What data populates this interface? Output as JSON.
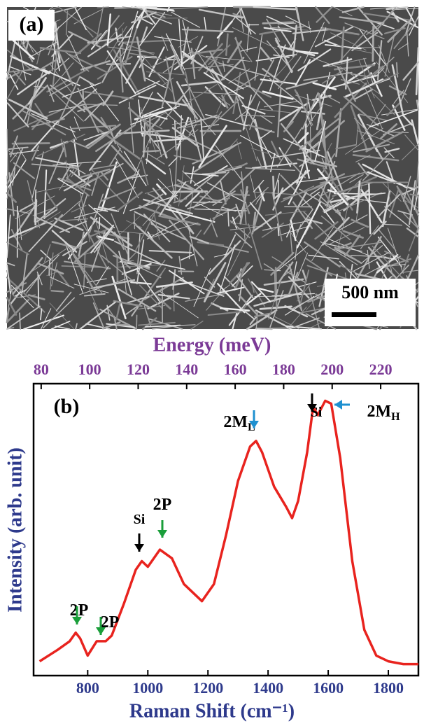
{
  "panel_a": {
    "label": "(a)",
    "scale_bar": "500 nm"
  },
  "chart_data": {
    "type": "line",
    "panel_label": "(b)",
    "xlabel": "Raman Shift (cm⁻¹)",
    "ylabel": "Intensity (arb. unit)",
    "x2label": "Energy (meV)",
    "x": [
      640,
      700,
      740,
      760,
      775,
      800,
      830,
      860,
      880,
      920,
      960,
      980,
      1000,
      1040,
      1080,
      1120,
      1180,
      1220,
      1260,
      1300,
      1340,
      1360,
      1380,
      1420,
      1460,
      1480,
      1500,
      1530,
      1550,
      1565,
      1590,
      1610,
      1640,
      1680,
      1720,
      1760,
      1800,
      1850,
      1900
    ],
    "values": [
      0.05,
      0.09,
      0.12,
      0.15,
      0.13,
      0.07,
      0.12,
      0.12,
      0.14,
      0.25,
      0.37,
      0.4,
      0.38,
      0.44,
      0.41,
      0.32,
      0.26,
      0.32,
      0.49,
      0.68,
      0.8,
      0.82,
      0.78,
      0.66,
      0.59,
      0.55,
      0.61,
      0.78,
      0.94,
      0.91,
      0.96,
      0.95,
      0.76,
      0.4,
      0.16,
      0.07,
      0.05,
      0.04,
      0.04
    ],
    "color": "#e8231e",
    "xlim": [
      620,
      1900
    ],
    "xticks": [
      800,
      1000,
      1200,
      1400,
      1600,
      1800
    ],
    "ylim": [
      0,
      1.02
    ],
    "x2lim": [
      76.87,
      235.56
    ],
    "x2ticks": [
      80,
      100,
      120,
      140,
      160,
      180,
      200,
      220
    ],
    "annotations": [
      {
        "text": "2P"
      },
      {
        "text": "2P"
      },
      {
        "text": "Si"
      },
      {
        "text": "2P"
      },
      {
        "text": "2M",
        "sub": "L"
      },
      {
        "text": "Si"
      },
      {
        "text": "2M",
        "sub": "H"
      }
    ]
  }
}
